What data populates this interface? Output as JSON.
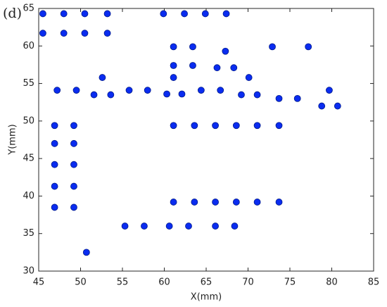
{
  "chart_data": {
    "type": "scatter",
    "annotation": "(d)",
    "x_label": "X(mm)",
    "y_label": "Y(mm)",
    "color": "#0a2cf0",
    "xlim": [
      45,
      85
    ],
    "ylim": [
      30,
      65
    ],
    "xticks": [
      45,
      50,
      55,
      60,
      65,
      70,
      75,
      80,
      85
    ],
    "yticks": [
      30,
      35,
      40,
      45,
      50,
      55,
      60,
      65
    ],
    "x": [
      45.5,
      48.0,
      50.5,
      53.2,
      59.9,
      62.4,
      64.9,
      67.4,
      45.5,
      48.0,
      50.5,
      53.2,
      61.1,
      63.4,
      67.3,
      72.9,
      77.2,
      61.1,
      63.4,
      66.3,
      68.3,
      52.6,
      61.1,
      70.1,
      47.2,
      49.5,
      51.6,
      53.6,
      55.8,
      58.0,
      60.3,
      62.1,
      64.4,
      66.7,
      69.2,
      71.1,
      73.7,
      75.9,
      79.7,
      78.8,
      80.7,
      46.9,
      49.2,
      61.1,
      63.6,
      66.1,
      68.6,
      71.1,
      73.7,
      46.9,
      49.2,
      46.9,
      49.2,
      46.9,
      49.2,
      46.9,
      49.2,
      61.1,
      63.6,
      66.1,
      68.6,
      71.1,
      73.7,
      55.3,
      57.6,
      60.6,
      62.9,
      66.1,
      68.4,
      50.7
    ],
    "y": [
      64.3,
      64.3,
      64.3,
      64.3,
      64.3,
      64.3,
      64.3,
      64.3,
      61.7,
      61.7,
      61.7,
      61.7,
      59.9,
      59.9,
      59.3,
      59.9,
      59.9,
      57.4,
      57.4,
      57.1,
      57.1,
      55.8,
      55.8,
      55.8,
      54.1,
      54.1,
      53.5,
      53.5,
      54.1,
      54.1,
      53.6,
      53.6,
      54.1,
      54.1,
      53.5,
      53.5,
      53.0,
      53.0,
      54.1,
      52.0,
      52.0,
      49.4,
      49.4,
      49.4,
      49.4,
      49.4,
      49.4,
      49.4,
      49.4,
      47.0,
      47.0,
      44.2,
      44.2,
      41.3,
      41.3,
      38.5,
      38.5,
      39.2,
      39.2,
      39.2,
      39.2,
      39.2,
      39.2,
      36.0,
      36.0,
      36.0,
      36.0,
      36.0,
      36.0,
      32.5
    ]
  }
}
